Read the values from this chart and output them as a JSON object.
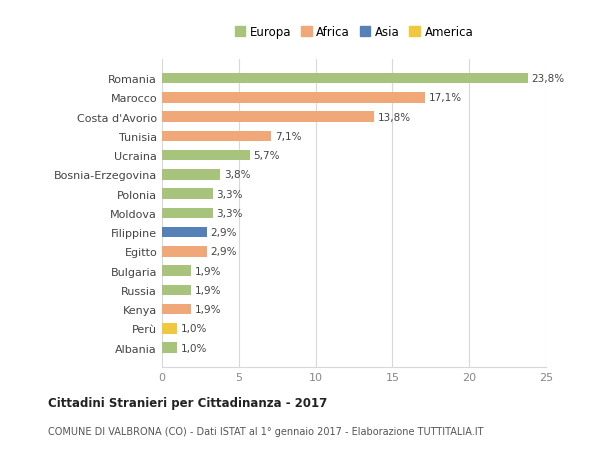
{
  "countries": [
    "Romania",
    "Marocco",
    "Costa d'Avorio",
    "Tunisia",
    "Ucraina",
    "Bosnia-Erzegovina",
    "Polonia",
    "Moldova",
    "Filippine",
    "Egitto",
    "Bulgaria",
    "Russia",
    "Kenya",
    "Perù",
    "Albania"
  ],
  "values": [
    23.8,
    17.1,
    13.8,
    7.1,
    5.7,
    3.8,
    3.3,
    3.3,
    2.9,
    2.9,
    1.9,
    1.9,
    1.9,
    1.0,
    1.0
  ],
  "labels": [
    "23,8%",
    "17,1%",
    "13,8%",
    "7,1%",
    "5,7%",
    "3,8%",
    "3,3%",
    "3,3%",
    "2,9%",
    "2,9%",
    "1,9%",
    "1,9%",
    "1,9%",
    "1,0%",
    "1,0%"
  ],
  "continents": [
    "Europa",
    "Africa",
    "Africa",
    "Africa",
    "Europa",
    "Europa",
    "Europa",
    "Europa",
    "Asia",
    "Africa",
    "Europa",
    "Europa",
    "Africa",
    "America",
    "Europa"
  ],
  "continent_colors": {
    "Europa": "#a8c47c",
    "Africa": "#f0a878",
    "Asia": "#5580b8",
    "America": "#f0c840"
  },
  "legend_order": [
    "Europa",
    "Africa",
    "Asia",
    "America"
  ],
  "title_bold": "Cittadini Stranieri per Cittadinanza - 2017",
  "subtitle": "COMUNE DI VALBRONA (CO) - Dati ISTAT al 1° gennaio 2017 - Elaborazione TUTTITALIA.IT",
  "xlim": [
    0,
    25
  ],
  "xticks": [
    0,
    5,
    10,
    15,
    20,
    25
  ],
  "background_color": "#ffffff",
  "grid_color": "#d8d8d8",
  "bar_height": 0.55
}
